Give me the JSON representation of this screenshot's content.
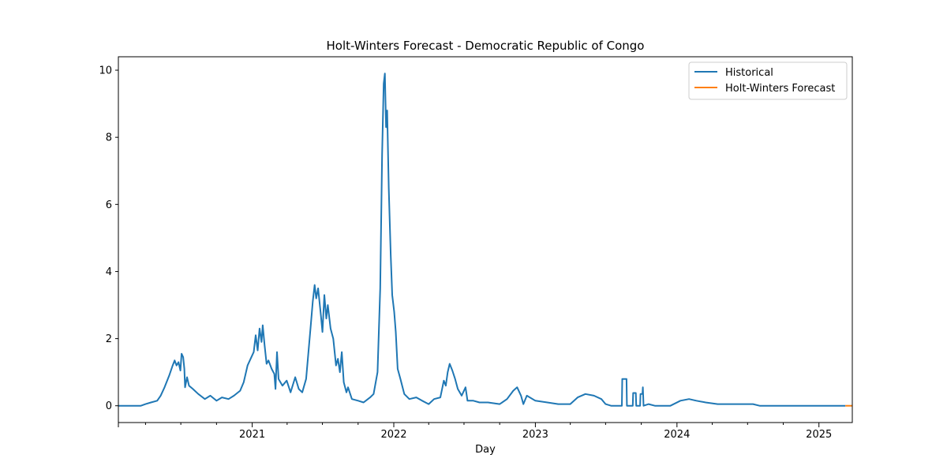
{
  "chart_data": {
    "type": "line",
    "title": "Holt-Winters Forecast - Democratic Republic of Congo",
    "xlabel": "Day",
    "ylabel": "",
    "xlim": [
      "2020-01-22",
      "2025-03-28"
    ],
    "ylim": [
      -0.5,
      10.4
    ],
    "x_ticks": [
      {
        "date": "2021-01-01",
        "label": "2021"
      },
      {
        "date": "2022-01-01",
        "label": "2022"
      },
      {
        "date": "2023-01-01",
        "label": "2023"
      },
      {
        "date": "2024-01-01",
        "label": "2024"
      },
      {
        "date": "2025-01-01",
        "label": "2025"
      }
    ],
    "y_ticks": [
      0,
      2,
      4,
      6,
      8,
      10
    ],
    "grid": false,
    "legend_position": "top-right",
    "series": [
      {
        "name": "Historical",
        "color": "#1f77b4",
        "points": [
          [
            "2020-01-22",
            0
          ],
          [
            "2020-03-20",
            0
          ],
          [
            "2020-04-01",
            0.05
          ],
          [
            "2020-04-15",
            0.1
          ],
          [
            "2020-05-01",
            0.15
          ],
          [
            "2020-05-10",
            0.3
          ],
          [
            "2020-05-20",
            0.55
          ],
          [
            "2020-06-01",
            0.9
          ],
          [
            "2020-06-10",
            1.2
          ],
          [
            "2020-06-15",
            1.35
          ],
          [
            "2020-06-20",
            1.2
          ],
          [
            "2020-06-25",
            1.3
          ],
          [
            "2020-06-30",
            1.05
          ],
          [
            "2020-07-03",
            1.55
          ],
          [
            "2020-07-07",
            1.45
          ],
          [
            "2020-07-10",
            1.1
          ],
          [
            "2020-07-12",
            0.55
          ],
          [
            "2020-07-17",
            0.85
          ],
          [
            "2020-07-22",
            0.6
          ],
          [
            "2020-08-01",
            0.5
          ],
          [
            "2020-08-15",
            0.35
          ],
          [
            "2020-09-01",
            0.2
          ],
          [
            "2020-09-15",
            0.3
          ],
          [
            "2020-10-01",
            0.15
          ],
          [
            "2020-10-15",
            0.25
          ],
          [
            "2020-11-01",
            0.2
          ],
          [
            "2020-11-15",
            0.3
          ],
          [
            "2020-12-01",
            0.45
          ],
          [
            "2020-12-10",
            0.7
          ],
          [
            "2020-12-20",
            1.2
          ],
          [
            "2020-12-28",
            1.4
          ],
          [
            "2021-01-05",
            1.6
          ],
          [
            "2021-01-10",
            2.1
          ],
          [
            "2021-01-15",
            1.65
          ],
          [
            "2021-01-20",
            2.3
          ],
          [
            "2021-01-25",
            1.9
          ],
          [
            "2021-01-28",
            2.4
          ],
          [
            "2021-02-02",
            1.8
          ],
          [
            "2021-02-07",
            1.25
          ],
          [
            "2021-02-12",
            1.35
          ],
          [
            "2021-02-20",
            1.1
          ],
          [
            "2021-02-27",
            0.95
          ],
          [
            "2021-03-02",
            0.5
          ],
          [
            "2021-03-06",
            1.6
          ],
          [
            "2021-03-10",
            0.8
          ],
          [
            "2021-03-20",
            0.6
          ],
          [
            "2021-03-31",
            0.75
          ],
          [
            "2021-04-10",
            0.4
          ],
          [
            "2021-04-22",
            0.85
          ],
          [
            "2021-05-01",
            0.5
          ],
          [
            "2021-05-10",
            0.4
          ],
          [
            "2021-05-20",
            0.8
          ],
          [
            "2021-06-01",
            2.4
          ],
          [
            "2021-06-06",
            3.1
          ],
          [
            "2021-06-11",
            3.6
          ],
          [
            "2021-06-15",
            3.2
          ],
          [
            "2021-06-20",
            3.5
          ],
          [
            "2021-06-27",
            2.7
          ],
          [
            "2021-07-01",
            2.2
          ],
          [
            "2021-07-06",
            3.3
          ],
          [
            "2021-07-11",
            2.6
          ],
          [
            "2021-07-15",
            3.0
          ],
          [
            "2021-07-22",
            2.3
          ],
          [
            "2021-07-29",
            2.0
          ],
          [
            "2021-08-05",
            1.2
          ],
          [
            "2021-08-10",
            1.4
          ],
          [
            "2021-08-15",
            1.0
          ],
          [
            "2021-08-20",
            1.6
          ],
          [
            "2021-08-25",
            0.7
          ],
          [
            "2021-09-01",
            0.4
          ],
          [
            "2021-09-05",
            0.55
          ],
          [
            "2021-09-15",
            0.2
          ],
          [
            "2021-10-01",
            0.15
          ],
          [
            "2021-10-15",
            0.1
          ],
          [
            "2021-11-01",
            0.25
          ],
          [
            "2021-11-10",
            0.35
          ],
          [
            "2021-11-20",
            1.0
          ],
          [
            "2021-11-27",
            3.5
          ],
          [
            "2021-12-02",
            7.5
          ],
          [
            "2021-12-06",
            9.6
          ],
          [
            "2021-12-09",
            9.9
          ],
          [
            "2021-12-12",
            8.3
          ],
          [
            "2021-12-15",
            8.8
          ],
          [
            "2021-12-19",
            6.5
          ],
          [
            "2021-12-24",
            4.5
          ],
          [
            "2021-12-28",
            3.3
          ],
          [
            "2022-01-02",
            2.8
          ],
          [
            "2022-01-06",
            2.2
          ],
          [
            "2022-01-11",
            1.1
          ],
          [
            "2022-01-18",
            0.8
          ],
          [
            "2022-01-28",
            0.35
          ],
          [
            "2022-02-10",
            0.2
          ],
          [
            "2022-02-28",
            0.25
          ],
          [
            "2022-03-15",
            0.15
          ],
          [
            "2022-04-01",
            0.05
          ],
          [
            "2022-04-15",
            0.2
          ],
          [
            "2022-05-01",
            0.25
          ],
          [
            "2022-05-10",
            0.75
          ],
          [
            "2022-05-15",
            0.6
          ],
          [
            "2022-05-20",
            1.0
          ],
          [
            "2022-05-25",
            1.25
          ],
          [
            "2022-06-01",
            1.05
          ],
          [
            "2022-06-08",
            0.8
          ],
          [
            "2022-06-15",
            0.5
          ],
          [
            "2022-06-25",
            0.3
          ],
          [
            "2022-07-05",
            0.55
          ],
          [
            "2022-07-10",
            0.15
          ],
          [
            "2022-07-25",
            0.15
          ],
          [
            "2022-08-10",
            0.1
          ],
          [
            "2022-09-01",
            0.1
          ],
          [
            "2022-10-01",
            0.05
          ],
          [
            "2022-10-20",
            0.2
          ],
          [
            "2022-11-05",
            0.45
          ],
          [
            "2022-11-15",
            0.55
          ],
          [
            "2022-11-25",
            0.3
          ],
          [
            "2022-12-01",
            0.05
          ],
          [
            "2022-12-10",
            0.3
          ],
          [
            "2023-01-01",
            0.15
          ],
          [
            "2023-02-01",
            0.1
          ],
          [
            "2023-03-01",
            0.05
          ],
          [
            "2023-04-01",
            0.05
          ],
          [
            "2023-04-20",
            0.25
          ],
          [
            "2023-05-10",
            0.35
          ],
          [
            "2023-06-01",
            0.3
          ],
          [
            "2023-06-20",
            0.2
          ],
          [
            "2023-07-01",
            0.05
          ],
          [
            "2023-07-15",
            0
          ],
          [
            "2023-08-12",
            0
          ],
          [
            "2023-08-13",
            0.8
          ],
          [
            "2023-08-24",
            0.8
          ],
          [
            "2023-08-25",
            0
          ],
          [
            "2023-09-09",
            0
          ],
          [
            "2023-09-10",
            0.38
          ],
          [
            "2023-09-17",
            0.38
          ],
          [
            "2023-09-18",
            0
          ],
          [
            "2023-09-28",
            0
          ],
          [
            "2023-09-29",
            0.35
          ],
          [
            "2023-10-04",
            0.35
          ],
          [
            "2023-10-05",
            0.55
          ],
          [
            "2023-10-07",
            0
          ],
          [
            "2023-10-20",
            0.05
          ],
          [
            "2023-11-05",
            0
          ],
          [
            "2023-12-15",
            0
          ],
          [
            "2024-01-10",
            0.15
          ],
          [
            "2024-02-01",
            0.2
          ],
          [
            "2024-02-20",
            0.15
          ],
          [
            "2024-03-15",
            0.1
          ],
          [
            "2024-04-15",
            0.05
          ],
          [
            "2024-05-20",
            0.05
          ],
          [
            "2024-06-20",
            0.05
          ],
          [
            "2024-07-15",
            0.05
          ],
          [
            "2024-08-01",
            0
          ],
          [
            "2024-10-01",
            0
          ],
          [
            "2024-12-01",
            0
          ],
          [
            "2025-03-10",
            0
          ]
        ]
      },
      {
        "name": "Holt-Winters Forecast",
        "color": "#ff7f0e",
        "points": [
          [
            "2025-03-10",
            0
          ],
          [
            "2025-03-28",
            0
          ]
        ]
      }
    ]
  }
}
